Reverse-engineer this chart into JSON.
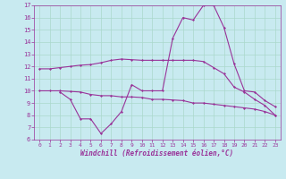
{
  "xlabel": "Windchill (Refroidissement éolien,°C)",
  "background_color": "#c8eaf0",
  "line_color": "#993399",
  "xlim": [
    -0.5,
    23.5
  ],
  "ylim": [
    6,
    17
  ],
  "yticks": [
    6,
    7,
    8,
    9,
    10,
    11,
    12,
    13,
    14,
    15,
    16,
    17
  ],
  "xticks": [
    0,
    1,
    2,
    3,
    4,
    5,
    6,
    7,
    8,
    9,
    10,
    11,
    12,
    13,
    14,
    15,
    16,
    17,
    18,
    19,
    20,
    21,
    22,
    23
  ],
  "line1_x": [
    0,
    1,
    2,
    3,
    4,
    5,
    6,
    7,
    8,
    9,
    10,
    11,
    12,
    13,
    14,
    15,
    16,
    17,
    18,
    19,
    20,
    21,
    22,
    23
  ],
  "line1_y": [
    11.8,
    11.8,
    11.9,
    12.0,
    12.1,
    12.15,
    12.3,
    12.5,
    12.6,
    12.55,
    12.5,
    12.5,
    12.5,
    12.5,
    12.5,
    12.5,
    12.4,
    11.9,
    11.4,
    10.3,
    9.9,
    9.3,
    8.8,
    8.0
  ],
  "line2_x": [
    2,
    3,
    4,
    5,
    6,
    7,
    8,
    9,
    10,
    11,
    12,
    13,
    14,
    15,
    16,
    17,
    18,
    19,
    20,
    21,
    22,
    23
  ],
  "line2_y": [
    9.9,
    9.3,
    7.7,
    7.7,
    6.5,
    7.3,
    8.3,
    10.5,
    10.0,
    10.0,
    10.0,
    14.3,
    16.0,
    15.8,
    17.0,
    17.0,
    15.2,
    12.2,
    10.0,
    9.9,
    9.2,
    8.7
  ],
  "line3_x": [
    0,
    1,
    2,
    3,
    4,
    5,
    6,
    7,
    8,
    9,
    10,
    11,
    12,
    13,
    14,
    15,
    16,
    17,
    18,
    19,
    20,
    21,
    22,
    23
  ],
  "line3_y": [
    10.0,
    10.0,
    10.0,
    9.95,
    9.9,
    9.7,
    9.6,
    9.6,
    9.5,
    9.5,
    9.45,
    9.3,
    9.3,
    9.25,
    9.2,
    9.0,
    9.0,
    8.9,
    8.8,
    8.7,
    8.6,
    8.5,
    8.3,
    8.0
  ],
  "grid_color": "#aad8cc",
  "tick_color": "#993399",
  "label_color": "#993399"
}
